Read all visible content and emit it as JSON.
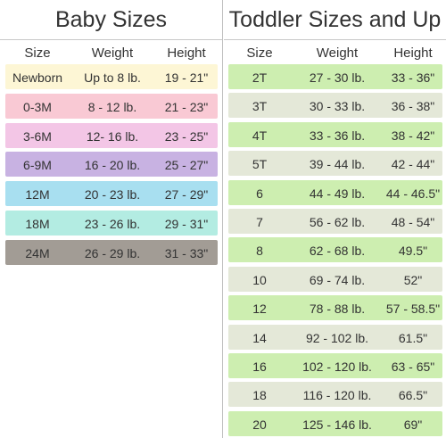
{
  "baby": {
    "title": "Baby Sizes",
    "headers": {
      "size": "Size",
      "weight": "Weight",
      "height": "Height"
    },
    "rows": [
      {
        "size": "Newborn",
        "weight": "Up to 8 lb.",
        "height": "19 - 21\"",
        "color": "#fdf6d5"
      },
      {
        "size": "0-3M",
        "weight": "8 - 12 lb.",
        "height": "21 - 23\"",
        "color": "#f9c9d4"
      },
      {
        "size": "3-6M",
        "weight": "12- 16 lb.",
        "height": "23 - 25\"",
        "color": "#f3c6e6"
      },
      {
        "size": "6-9M",
        "weight": "16 - 20 lb.",
        "height": "25 - 27\"",
        "color": "#c8b2e2"
      },
      {
        "size": "12M",
        "weight": "20 - 23 lb.",
        "height": "27 - 29\"",
        "color": "#a8dff0"
      },
      {
        "size": "18M",
        "weight": "23 - 26 lb.",
        "height": "29 - 31\"",
        "color": "#b3ece2"
      },
      {
        "size": "24M",
        "weight": "26 - 29 lb.",
        "height": "31 - 33\"",
        "color": "#a29c95"
      }
    ]
  },
  "toddler": {
    "title": "Toddler Sizes and Up",
    "headers": {
      "size": "Size",
      "weight": "Weight",
      "height": "Height"
    },
    "colors": {
      "green": "#cdeeb0",
      "grey": "#e4e8d8"
    },
    "rows": [
      {
        "size": "2T",
        "weight": "27 - 30 lb.",
        "height": "33 - 36\""
      },
      {
        "size": "3T",
        "weight": "30 - 33 lb.",
        "height": "36 - 38\""
      },
      {
        "size": "4T",
        "weight": "33 - 36 lb.",
        "height": "38 - 42\""
      },
      {
        "size": "5T",
        "weight": "39 - 44 lb.",
        "height": "42 - 44\""
      },
      {
        "size": "6",
        "weight": "44 - 49 lb.",
        "height": "44 - 46.5\""
      },
      {
        "size": "7",
        "weight": "56 - 62 lb.",
        "height": "48 - 54\""
      },
      {
        "size": "8",
        "weight": "62 - 68 lb.",
        "height": "49.5\""
      },
      {
        "size": "10",
        "weight": "69 - 74 lb.",
        "height": "52\""
      },
      {
        "size": "12",
        "weight": "78 - 88 lb.",
        "height": "57 - 58.5\""
      },
      {
        "size": "14",
        "weight": "92 - 102 lb.",
        "height": "61.5\""
      },
      {
        "size": "16",
        "weight": "102 - 120 lb.",
        "height": "63 - 65\""
      },
      {
        "size": "18",
        "weight": "116 - 120 lb.",
        "height": "66.5\""
      },
      {
        "size": "20",
        "weight": "125 - 146 lb.",
        "height": "69\""
      }
    ]
  }
}
